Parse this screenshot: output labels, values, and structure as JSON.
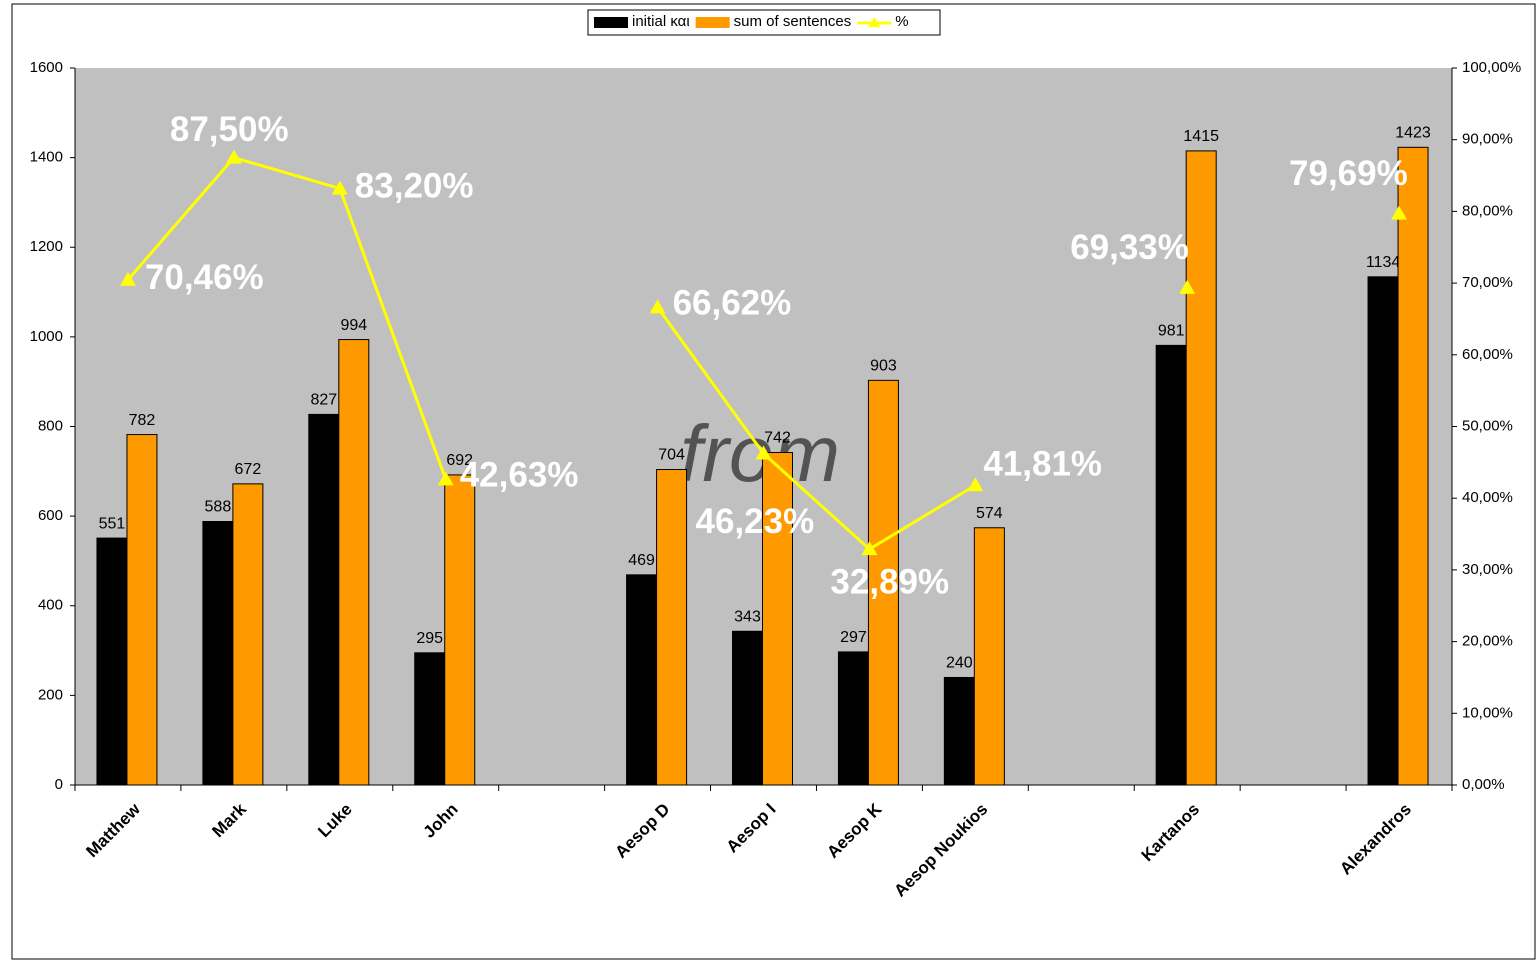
{
  "chart_data": {
    "type": "bar_line",
    "categories": [
      "Matthew",
      "Mark",
      "Luke",
      "John",
      null,
      "Aesop D",
      "Aesop I",
      "Aesop K",
      "Aesop Noukios",
      null,
      "Kartanos",
      null,
      "Alexandros"
    ],
    "series": [
      {
        "name": "initial και",
        "color": "#000000",
        "values": [
          551,
          588,
          827,
          295,
          null,
          469,
          343,
          297,
          240,
          null,
          981,
          null,
          1134
        ]
      },
      {
        "name": "sum of sentences",
        "color": "#ff9900",
        "values": [
          782,
          672,
          994,
          692,
          null,
          704,
          742,
          903,
          574,
          null,
          1415,
          null,
          1423
        ]
      },
      {
        "name": "%",
        "color": "#ffff00",
        "axis": "y2",
        "values": [
          70.46,
          87.5,
          83.2,
          42.63,
          null,
          66.62,
          46.23,
          32.89,
          41.81,
          null,
          69.33,
          null,
          79.69
        ],
        "value_labels": [
          "70,46%",
          "87,50%",
          "83,20%",
          "42,63%",
          null,
          "66,62%",
          "46,23%",
          "32,89%",
          "41,81%",
          null,
          "69,33%",
          null,
          "79,69%"
        ]
      }
    ],
    "ylim": [
      0,
      1600
    ],
    "yticks": [
      0,
      200,
      400,
      600,
      800,
      1000,
      1200,
      1400,
      1600
    ],
    "y2lim": [
      0,
      100
    ],
    "y2ticks": [
      {
        "value": 0,
        "label": "0,00%"
      },
      {
        "value": 10,
        "label": "10,00%"
      },
      {
        "value": 20,
        "label": "20,00%"
      },
      {
        "value": 30,
        "label": "30,00%"
      },
      {
        "value": 40,
        "label": "40,00%"
      },
      {
        "value": 50,
        "label": "50,00%"
      },
      {
        "value": 60,
        "label": "60,00%"
      },
      {
        "value": 70,
        "label": "70,00%"
      },
      {
        "value": 80,
        "label": "80,00%"
      },
      {
        "value": 90,
        "label": "90,00%"
      },
      {
        "value": 100,
        "label": "100,00%"
      }
    ],
    "annotation": "from",
    "legend": "top"
  }
}
